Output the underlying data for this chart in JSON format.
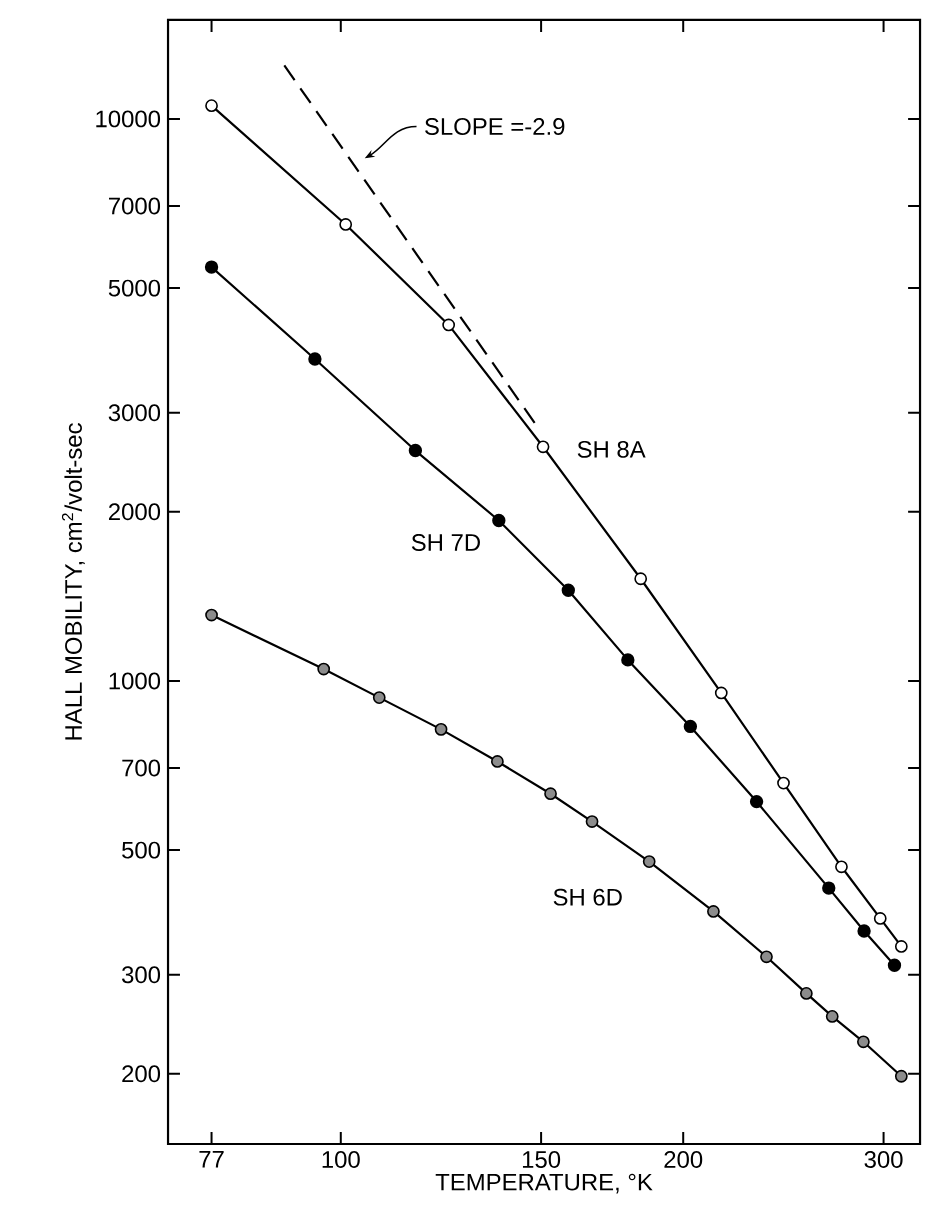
{
  "chart_data": {
    "type": "line",
    "xlabel": "TEMPERATURE, °K",
    "ylabel": "HALL MOBILITY, cm$^{2}$/volt-sec",
    "log": "xy",
    "xlim": [
      70.5,
      323
    ],
    "ylim": [
      150,
      15000
    ],
    "xticks": [
      77,
      100,
      150,
      200,
      300
    ],
    "yticks": [
      200,
      300,
      500,
      700,
      1000,
      2000,
      3000,
      5000,
      7000,
      10000
    ],
    "marker": "circle",
    "line_style": "solid",
    "series": [
      {
        "name": "SH 8A",
        "color": "#000000",
        "x": [
          77,
          101,
          124.4,
          150.6,
          183.5,
          216,
          245,
          275.5,
          298,
          311
        ],
        "values": [
          10560,
          6490,
          4300,
          2610,
          1520,
          952,
          658,
          467,
          378,
          337
        ]
      },
      {
        "name": "SH 7D",
        "color": "#000000",
        "x": [
          77,
          94.9,
          116.3,
          137.7,
          158.5,
          178.8,
          202.9,
          232,
          268.5,
          288.4,
          306.7
        ],
        "values": [
          5450,
          3740,
          2570,
          1930,
          1450,
          1090,
          830,
          610,
          428,
          359,
          312
        ]
      },
      {
        "name": "SH 6D",
        "color": "#000000",
        "x": [
          77,
          96.6,
          108.1,
          122.5,
          137.3,
          152.9,
          166.3,
          186.7,
          212.6,
          236.7,
          256.6,
          270.4,
          288,
          311
        ],
        "values": [
          1310,
          1050,
          934,
          820,
          719,
          630,
          562,
          477,
          389,
          323,
          278,
          253,
          228,
          198
        ]
      },
      {
        "type": "line",
        "color": "#000000",
        "line_style": "dashed",
        "marker": "none",
        "x": [
          89.2,
          148.6
        ],
        "values": [
          12450,
          2848
        ]
      }
    ],
    "annotations": [
      {
        "text": "SLOPE =-2.9",
        "x": 103.7,
        "y": 8370
      }
    ]
  }
}
